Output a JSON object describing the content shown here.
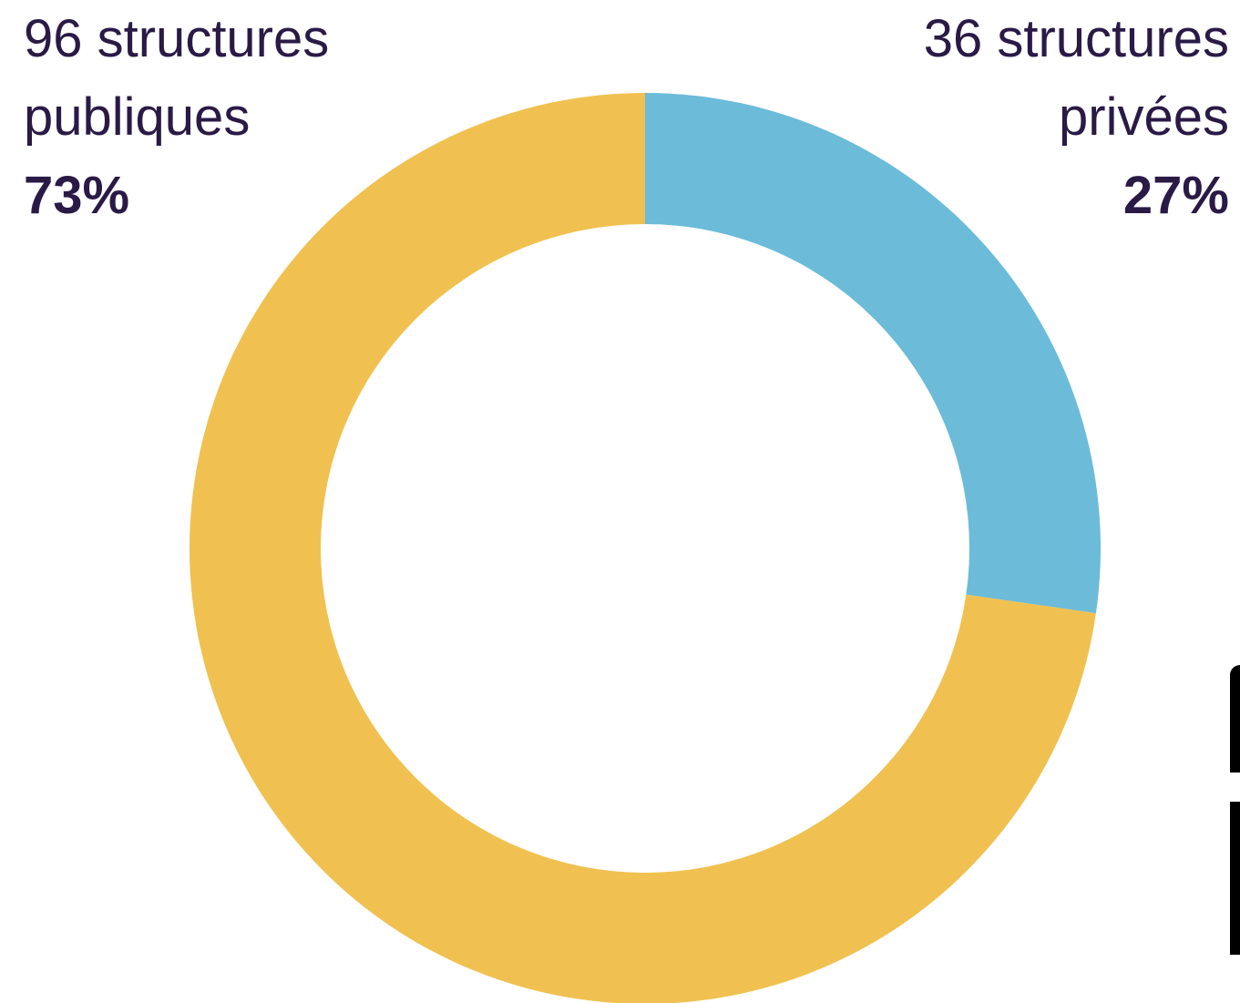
{
  "chart_data": {
    "type": "pie",
    "variant": "donut",
    "slices": [
      {
        "label_line1": "36 structures",
        "label_line2": "privées",
        "percent_label": "27%",
        "count": 36,
        "percent": 27,
        "color": "#6bbbd9"
      },
      {
        "label_line1": "96 structures",
        "label_line2": "publiques",
        "percent_label": "73%",
        "count": 96,
        "percent": 73,
        "color": "#f0c150"
      }
    ],
    "start_angle_deg": 0,
    "direction": "clockwise",
    "legend": "none"
  },
  "colors": {
    "text": "#2a1a46",
    "background": "#ffffff"
  }
}
